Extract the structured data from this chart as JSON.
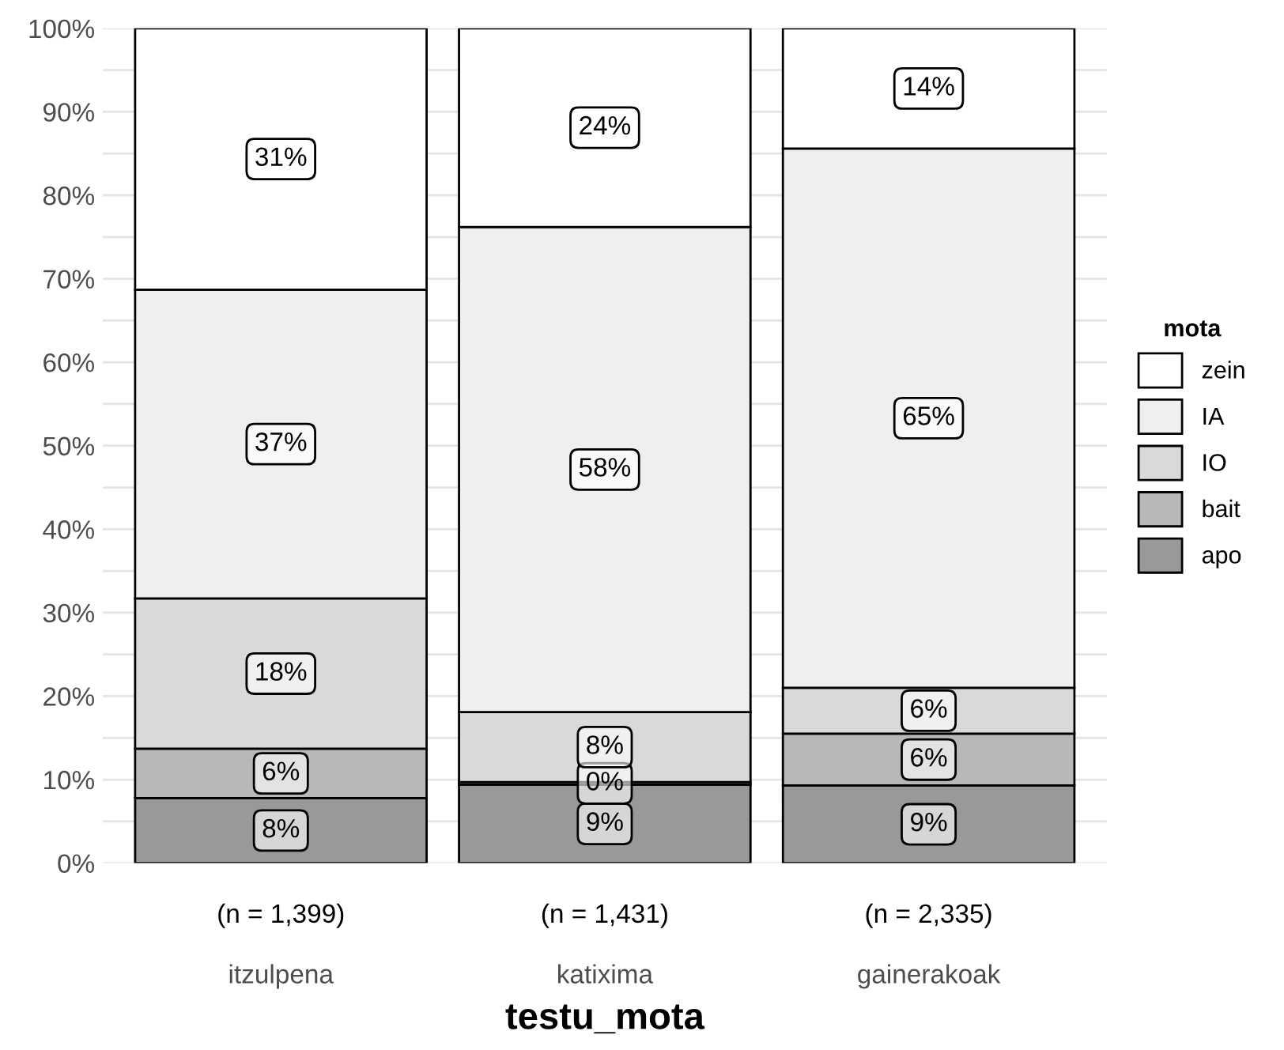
{
  "chart_data": {
    "type": "bar",
    "stacked": true,
    "xlabel": "testu_mota",
    "legend_title": "mota",
    "legend": "right",
    "categories": [
      "itzulpena",
      "katixima",
      "gainerakoak"
    ],
    "series": [
      {
        "name": "apo",
        "color": "#999999",
        "values": [
          7.8,
          9.4,
          9.3
        ],
        "value_labels": [
          "8%",
          "9%",
          "9%"
        ]
      },
      {
        "name": "bait",
        "color": "#b8b8b8",
        "values": [
          5.9,
          0.3,
          6.2
        ],
        "value_labels": [
          "6%",
          "0%",
          "6%"
        ]
      },
      {
        "name": "IO",
        "color": "#d9d9d9",
        "values": [
          18.0,
          8.4,
          5.5
        ],
        "value_labels": [
          "18%",
          "8%",
          "6%"
        ]
      },
      {
        "name": "IA",
        "color": "#efefef",
        "values": [
          37.0,
          58.1,
          64.6
        ],
        "value_labels": [
          "37%",
          "58%",
          "65%"
        ]
      },
      {
        "name": "zein",
        "color": "#ffffff",
        "values": [
          31.3,
          23.8,
          14.4
        ],
        "value_labels": [
          "31%",
          "24%",
          "14%"
        ]
      }
    ],
    "ylim": [
      0,
      100
    ],
    "yticks": [
      {
        "value": 0,
        "label": "0%"
      },
      {
        "value": 5,
        "label": null
      },
      {
        "value": 10,
        "label": "10%"
      },
      {
        "value": 15,
        "label": null
      },
      {
        "value": 20,
        "label": "20%"
      },
      {
        "value": 25,
        "label": null
      },
      {
        "value": 30,
        "label": "30%"
      },
      {
        "value": 35,
        "label": null
      },
      {
        "value": 40,
        "label": "40%"
      },
      {
        "value": 45,
        "label": null
      },
      {
        "value": 50,
        "label": "50%"
      },
      {
        "value": 55,
        "label": null
      },
      {
        "value": 60,
        "label": "60%"
      },
      {
        "value": 65,
        "label": null
      },
      {
        "value": 70,
        "label": "70%"
      },
      {
        "value": 75,
        "label": null
      },
      {
        "value": 80,
        "label": "80%"
      },
      {
        "value": 85,
        "label": null
      },
      {
        "value": 90,
        "label": "90%"
      },
      {
        "value": 95,
        "label": null
      },
      {
        "value": 100,
        "label": "100%"
      }
    ],
    "grid": "y",
    "annotations": [
      "(n = 1,399)",
      "(n = 1,431)",
      "(n = 2,335)"
    ]
  }
}
